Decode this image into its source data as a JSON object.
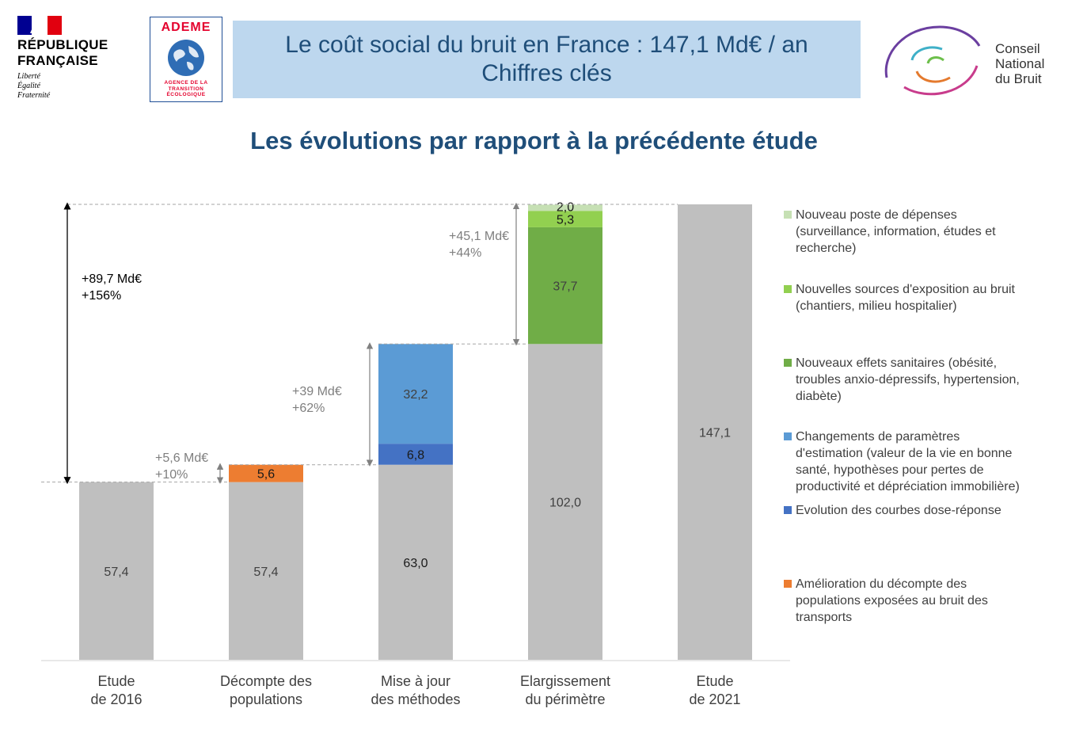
{
  "header": {
    "rf_name_line1": "RÉPUBLIQUE",
    "rf_name_line2": "FRANÇAISE",
    "rf_motto": [
      "Liberté",
      "Égalité",
      "Fraternité"
    ],
    "ademe_name": "ADEME",
    "ademe_sub": [
      "AGENCE DE LA",
      "TRANSITION",
      "ÉCOLOGIQUE"
    ],
    "title_line1": "Le coût social du bruit en France : 147,1 Md€ / an",
    "title_line2": "Chiffres clés",
    "cnb_lines": [
      "Conseil",
      "National",
      "du Bruit"
    ],
    "subtitle": "Les évolutions par rapport à la précédente étude"
  },
  "colors": {
    "gray": "#bfbfbf",
    "orange": "#ed7d31",
    "dark_blue": "#4472c4",
    "light_blue": "#5b9bd5",
    "dark_green": "#70ad47",
    "light_green": "#92d050",
    "pale_green": "#c6e0b4",
    "title_bg": "#bdd7ee",
    "title_text": "#1f4e79"
  },
  "chart_data": {
    "type": "bar",
    "subtype": "waterfall",
    "ylim": [
      0,
      147.1
    ],
    "categories": [
      [
        "Etude",
        "de 2016"
      ],
      [
        "Décompte des",
        "populations"
      ],
      [
        "Mise à jour",
        "des méthodes"
      ],
      [
        "Elargissement",
        "du périmètre"
      ],
      [
        "Etude",
        "de 2021"
      ]
    ],
    "bars": [
      {
        "segments": [
          {
            "base": 0,
            "value": 57.4,
            "color": "#bfbfbf",
            "label": "57,4"
          }
        ]
      },
      {
        "segments": [
          {
            "base": 0,
            "value": 57.4,
            "color": "#bfbfbf",
            "label": "57,4"
          },
          {
            "base": 57.4,
            "value": 5.6,
            "color": "#ed7d31",
            "label": "5,6"
          }
        ]
      },
      {
        "segments": [
          {
            "base": 0,
            "value": 63.0,
            "color": "#bfbfbf",
            "label": "63,0"
          },
          {
            "base": 63.0,
            "value": 6.8,
            "color": "#4472c4",
            "label": "6,8"
          },
          {
            "base": 69.8,
            "value": 32.2,
            "color": "#5b9bd5",
            "label": "32,2"
          }
        ]
      },
      {
        "segments": [
          {
            "base": 0,
            "value": 102.0,
            "color": "#bfbfbf",
            "label": "102,0"
          },
          {
            "base": 102.0,
            "value": 37.7,
            "color": "#70ad47",
            "label": "37,7"
          },
          {
            "base": 139.7,
            "value": 5.3,
            "color": "#92d050",
            "label": "5,3"
          },
          {
            "base": 145.0,
            "value": 2.0,
            "color": "#c6e0b4",
            "label": "2,0"
          }
        ]
      },
      {
        "segments": [
          {
            "base": 0,
            "value": 147.1,
            "color": "#bfbfbf",
            "label": "147,1"
          }
        ]
      }
    ],
    "annotations": [
      {
        "bar": 1,
        "from": 57.4,
        "to": 63.0,
        "lines": [
          "+5,6 Md€",
          "+10%"
        ]
      },
      {
        "bar": 2,
        "from": 63.0,
        "to": 102.0,
        "lines": [
          "+39 Md€",
          "+62%"
        ]
      },
      {
        "bar": 3,
        "from": 102.0,
        "to": 147.1,
        "lines": [
          "+45,1 Md€",
          "+44%"
        ]
      },
      {
        "bar": 0,
        "from": 57.4,
        "to": 147.1,
        "lines": [
          "+89,7 Md€",
          "+156%"
        ]
      }
    ],
    "legend": [
      {
        "color": "#c6e0b4",
        "lines": [
          "Nouveau poste de dépenses",
          "(surveillance, information, études et",
          "recherche)"
        ]
      },
      {
        "color": "#92d050",
        "lines": [
          "Nouvelles sources d'exposition au bruit",
          "(chantiers, milieu hospitalier)"
        ]
      },
      {
        "color": "#70ad47",
        "lines": [
          "Nouveaux effets sanitaires (obésité,",
          "troubles anxio-dépressifs, hypertension,",
          "diabète)"
        ]
      },
      {
        "color": "#5b9bd5",
        "lines": [
          "Changements de paramètres",
          "d'estimation (valeur de la vie en bonne",
          "santé,  hypothèses pour pertes de",
          "productivité et dépréciation immobilière)"
        ]
      },
      {
        "color": "#4472c4",
        "lines": [
          "Evolution des courbes dose-réponse"
        ]
      },
      {
        "color": "#ed7d31",
        "lines": [
          "Amélioration du décompte des",
          "populations exposées au bruit des",
          "transports"
        ]
      }
    ],
    "legend_placement": "right"
  }
}
